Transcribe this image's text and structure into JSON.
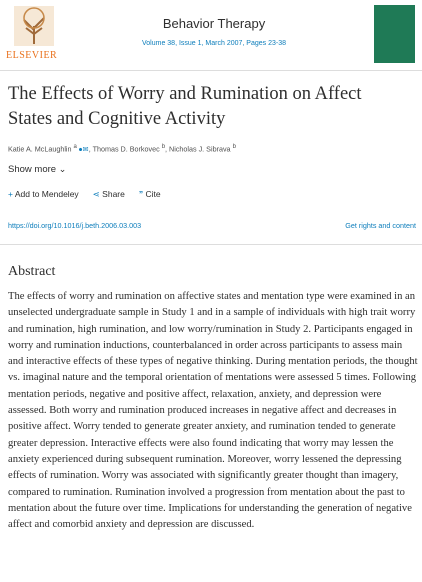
{
  "header": {
    "publisher": "ELSEVIER",
    "journal": "Behavior Therapy",
    "citation": "Volume 38, Issue 1, March 2007, Pages 23-38"
  },
  "article": {
    "title_lines": [
      "The Effects of Worry and Rumination on Affect",
      "States and Cognitive Activity"
    ],
    "authors": [
      {
        "name": "Katie A. McLaughlin",
        "affiliation": "a"
      },
      {
        "name": "Thomas D. Borkovec",
        "affiliation": "b"
      },
      {
        "name": "Nicholas J. Sibrava",
        "affiliation": "b"
      }
    ],
    "show_more": "Show more",
    "actions": [
      "Add to Mendeley",
      "Share",
      "Cite"
    ],
    "doi": "https://doi.org/10.1016/j.beth.2006.03.003",
    "rights": "Get rights and content"
  },
  "abstract": {
    "heading": "Abstract",
    "text": "The effects of worry and rumination on affective states and mentation type were examined in an unselected undergraduate sample in Study 1 and in a sample of individuals with high trait worry and rumination, high rumination, and low worry/rumination in Study 2. Participants engaged in worry and rumination inductions, counterbalanced in order across participants to assess main and interactive effects of these types of negative thinking. During mentation periods, the thought vs. imaginal nature and the temporal orientation of mentations were assessed 5 times. Following mentation periods, negative and positive affect, relaxation, anxiety, and depression were assessed. Both worry and rumination produced increases in negative affect and decreases in positive affect. Worry tended to generate greater anxiety, and rumination tended to generate greater depression. Interactive effects were also found indicating that worry may lessen the anxiety experienced during subsequent rumination. Moreover, worry lessened the depressing effects of rumination. Worry was associated with significantly greater thought than imagery, compared to rumination. Rumination involved a progression from mentation about the past to mentation about the future over time. Implications for understanding the generation of negative affect and comorbid anxiety and depression are discussed."
  }
}
